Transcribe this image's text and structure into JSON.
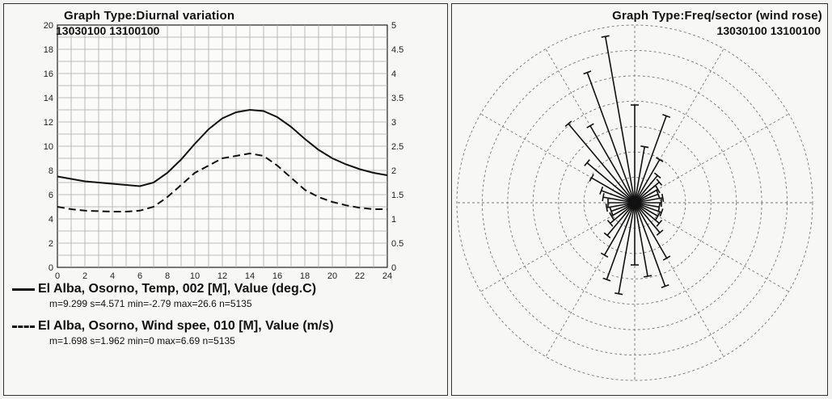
{
  "diurnal": {
    "title": "Graph Type:Diurnal variation",
    "subtitle": "13030100  13100100",
    "legend": [
      {
        "label": "El Alba, Osorno, Temp, 002 [M], Value (deg.C)",
        "stats": "m=9.299 s=4.571 min=-2.79 max=26.6 n=5135"
      },
      {
        "label": "El Alba, Osorno, Wind spee, 010 [M], Value (m/s)",
        "stats": "m=1.698 s=1.962 min=0 max=6.69 n=5135"
      }
    ]
  },
  "rose": {
    "title": "Graph Type:Freq/sector (wind rose)",
    "subtitle": "13030100    13100100"
  },
  "chart_data": [
    {
      "type": "line",
      "title": "Graph Type:Diurnal variation",
      "xlim": [
        0,
        24
      ],
      "x_ticks": [
        0,
        2,
        4,
        6,
        8,
        10,
        12,
        14,
        16,
        18,
        20,
        22,
        24
      ],
      "ylim_left": [
        0,
        20
      ],
      "y_ticks_left": [
        0,
        2,
        4,
        6,
        8,
        10,
        12,
        14,
        16,
        18,
        20
      ],
      "ylim_right": [
        0,
        5
      ],
      "y_ticks_right": [
        0,
        0.5,
        1,
        1.5,
        2,
        2.5,
        3,
        3.5,
        4,
        4.5,
        5
      ],
      "grid": true,
      "x": [
        0,
        1,
        2,
        3,
        4,
        5,
        6,
        7,
        8,
        9,
        10,
        11,
        12,
        13,
        14,
        15,
        16,
        17,
        18,
        19,
        20,
        21,
        22,
        23,
        24
      ],
      "series": [
        {
          "name": "El Alba, Osorno, Temp, 002 [M], Value (deg.C)",
          "axis": "left",
          "style": "solid",
          "values": [
            7.5,
            7.3,
            7.1,
            7.0,
            6.9,
            6.8,
            6.7,
            7.0,
            7.8,
            8.9,
            10.2,
            11.4,
            12.3,
            12.8,
            13.0,
            12.9,
            12.4,
            11.6,
            10.6,
            9.7,
            9.0,
            8.5,
            8.1,
            7.8,
            7.6
          ]
        },
        {
          "name": "El Alba, Osorno, Wind spee, 010 [M], Value (m/s)",
          "axis": "right",
          "style": "dashed",
          "values": [
            1.25,
            1.2,
            1.17,
            1.16,
            1.15,
            1.15,
            1.17,
            1.25,
            1.45,
            1.7,
            1.95,
            2.1,
            2.25,
            2.3,
            2.35,
            2.3,
            2.1,
            1.85,
            1.6,
            1.45,
            1.35,
            1.28,
            1.23,
            1.2,
            1.2
          ]
        }
      ]
    },
    {
      "type": "scatter",
      "subtype": "wind rose",
      "title": "Graph Type:Freq/sector (wind rose)",
      "rings": 7,
      "spokes": 12,
      "grid": true,
      "directions_deg": [
        0,
        10,
        20,
        30,
        40,
        50,
        60,
        70,
        80,
        90,
        100,
        110,
        120,
        130,
        140,
        150,
        160,
        170,
        180,
        190,
        200,
        210,
        220,
        230,
        240,
        250,
        260,
        270,
        280,
        290,
        300,
        310,
        320,
        330,
        340,
        350
      ],
      "values": [
        0.55,
        0.32,
        0.52,
        0.28,
        0.2,
        0.18,
        0.15,
        0.14,
        0.16,
        0.15,
        0.14,
        0.16,
        0.15,
        0.18,
        0.22,
        0.36,
        0.5,
        0.42,
        0.35,
        0.52,
        0.46,
        0.34,
        0.24,
        0.18,
        0.15,
        0.14,
        0.16,
        0.15,
        0.18,
        0.2,
        0.28,
        0.35,
        0.58,
        0.5,
        0.78,
        0.95
      ],
      "rmax": 1.0
    }
  ]
}
